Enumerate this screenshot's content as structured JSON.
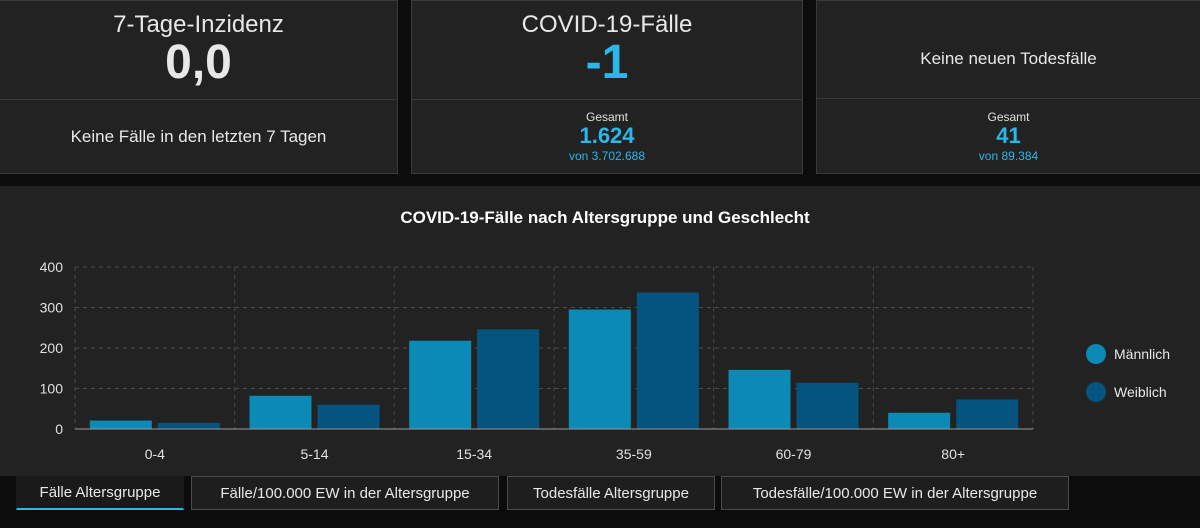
{
  "cards": {
    "incidence": {
      "title": "7-Tage-Inzidenz",
      "value": "0,0",
      "subtitle": "Keine Fälle in den letzten 7 Tagen"
    },
    "cases": {
      "title": "COVID-19-Fälle",
      "value": "-1",
      "total_label": "Gesamt",
      "total_value": "1.624",
      "total_of": "von 3.702.688"
    },
    "deaths": {
      "title": "Keine neuen Todesfälle",
      "total_label": "Gesamt",
      "total_value": "41",
      "total_of": "von 89.384"
    }
  },
  "colors": {
    "male": "#0a8ab5",
    "female": "#05547f",
    "accent": "#2ab7ea"
  },
  "chart_data": {
    "type": "bar",
    "title": "COVID-19-Fälle nach Altersgruppe und Geschlecht",
    "categories": [
      "0-4",
      "5-14",
      "15-34",
      "35-59",
      "60-79",
      "80+"
    ],
    "series": [
      {
        "name": "Männlich",
        "values": [
          21,
          82,
          218,
          295,
          146,
          40
        ]
      },
      {
        "name": "Weiblich",
        "values": [
          15,
          60,
          246,
          337,
          114,
          73
        ]
      }
    ],
    "yticks": [
      "0",
      "100",
      "200",
      "300",
      "400"
    ],
    "ylim": [
      0,
      400
    ],
    "xlabel": "",
    "ylabel": "",
    "legend": "right"
  },
  "tabs": [
    "Fälle Altersgruppe",
    "Fälle/100.000 EW in der Altersgruppe",
    "Todesfälle Altersgruppe",
    "Todesfälle/100.000 EW in der Altersgruppe"
  ]
}
